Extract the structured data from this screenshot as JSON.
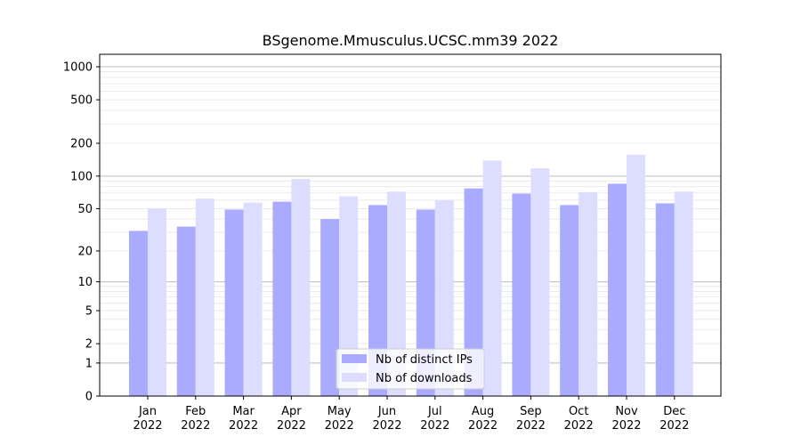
{
  "chart_data": {
    "type": "bar",
    "title": "BSgenome.Mmusculus.UCSC.mm39 2022",
    "xlabel": "",
    "ylabel": "",
    "yscale": "log1p",
    "ylim": [
      0,
      1300
    ],
    "y_ticks": [
      0,
      1,
      2,
      5,
      10,
      20,
      50,
      100,
      200,
      500,
      1000
    ],
    "y_tick_labels": [
      "0",
      "1",
      "2",
      "5",
      "10",
      "20",
      "50",
      "100",
      "200",
      "500",
      "1000"
    ],
    "grid": true,
    "legend_position": "bottom-center",
    "categories": [
      {
        "month": "Jan",
        "year": "2022"
      },
      {
        "month": "Feb",
        "year": "2022"
      },
      {
        "month": "Mar",
        "year": "2022"
      },
      {
        "month": "Apr",
        "year": "2022"
      },
      {
        "month": "May",
        "year": "2022"
      },
      {
        "month": "Jun",
        "year": "2022"
      },
      {
        "month": "Jul",
        "year": "2022"
      },
      {
        "month": "Aug",
        "year": "2022"
      },
      {
        "month": "Sep",
        "year": "2022"
      },
      {
        "month": "Oct",
        "year": "2022"
      },
      {
        "month": "Nov",
        "year": "2022"
      },
      {
        "month": "Dec",
        "year": "2022"
      }
    ],
    "series": [
      {
        "name": "Nb of distinct IPs",
        "color": "#aaaaff",
        "values": [
          31,
          34,
          49,
          58,
          40,
          54,
          49,
          77,
          69,
          54,
          85,
          56
        ]
      },
      {
        "name": "Nb of downloads",
        "color": "#ddddff",
        "values": [
          50,
          62,
          57,
          94,
          65,
          72,
          60,
          139,
          118,
          71,
          157,
          72
        ]
      }
    ]
  }
}
